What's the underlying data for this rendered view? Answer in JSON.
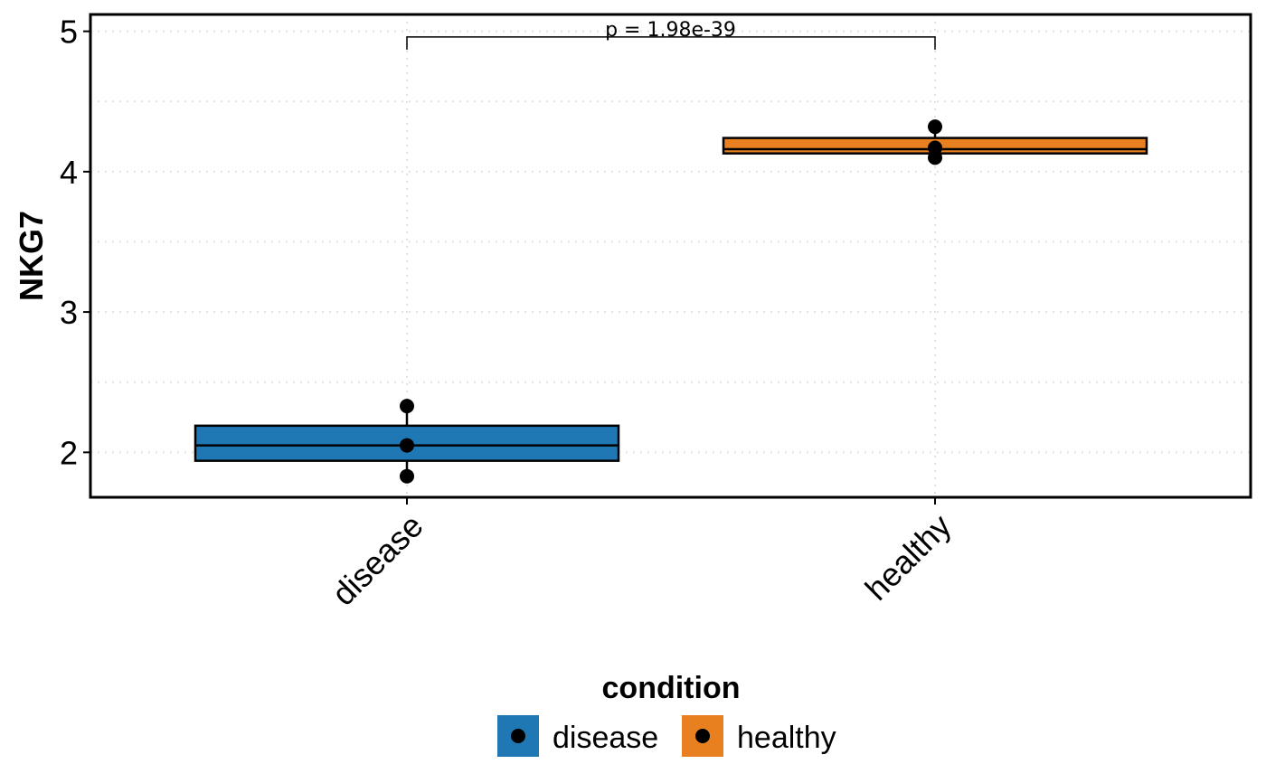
{
  "chart_data": {
    "type": "box",
    "ylabel": "NKG7",
    "xlabel": "",
    "categories": [
      "disease",
      "healthy"
    ],
    "ylim": [
      1.68,
      5.12
    ],
    "yticks": [
      2,
      3,
      4,
      5
    ],
    "grid": true,
    "boxes": [
      {
        "category": "disease",
        "q1": 1.94,
        "median": 2.05,
        "q3": 2.19,
        "whisker_low": 1.83,
        "whisker_high": 2.33,
        "color": "#1F77B4"
      },
      {
        "category": "healthy",
        "q1": 4.13,
        "median": 4.16,
        "q3": 4.24,
        "whisker_low": 4.09,
        "whisker_high": 4.32,
        "color": "#E8801F"
      }
    ],
    "points": [
      {
        "category": "disease",
        "y": 2.33
      },
      {
        "category": "disease",
        "y": 2.05
      },
      {
        "category": "disease",
        "y": 1.83
      },
      {
        "category": "healthy",
        "y": 4.32
      },
      {
        "category": "healthy",
        "y": 4.17
      },
      {
        "category": "healthy",
        "y": 4.1
      }
    ],
    "annotation": {
      "text": "p = 1.98e-39",
      "y": 4.96
    },
    "legend": {
      "title": "condition",
      "position": "bottom",
      "entries": [
        {
          "label": "disease",
          "color": "#1F77B4"
        },
        {
          "label": "healthy",
          "color": "#E8801F"
        }
      ]
    }
  }
}
